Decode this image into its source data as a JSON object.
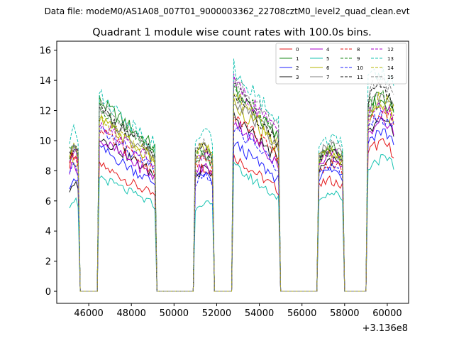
{
  "chart_data": {
    "type": "line",
    "suptitle": "Data file: modeM0/AS1A08_007T01_9000003362_22708cztM0_level2_quad_clean.evt",
    "title": "Quadrant 1 module wise count rates with 100.0s bins.",
    "xlabel": "",
    "ylabel": "",
    "x_offset_label": "+3.136e8",
    "xlim": [
      44500,
      61000
    ],
    "ylim": [
      -0.8,
      16.6
    ],
    "x_ticks": [
      46000,
      48000,
      50000,
      52000,
      54000,
      56000,
      58000,
      60000
    ],
    "x_tick_labels": [
      "46000",
      "48000",
      "50000",
      "52000",
      "54000",
      "56000",
      "58000",
      "60000"
    ],
    "y_ticks": [
      0,
      2,
      4,
      6,
      8,
      10,
      12,
      14,
      16
    ],
    "y_tick_labels": [
      "0",
      "2",
      "4",
      "6",
      "8",
      "10",
      "12",
      "14",
      "16"
    ],
    "segments": [
      {
        "start": 45100,
        "end": 45500,
        "peak_x": 45100
      },
      {
        "start": 46500,
        "end": 49100,
        "peak_x": 46500
      },
      {
        "start": 51000,
        "end": 51800,
        "peak_x": 51600
      },
      {
        "start": 52800,
        "end": 54900,
        "peak_x": 52800
      },
      {
        "start": 56800,
        "end": 57900,
        "peak_x": 56900
      },
      {
        "start": 59100,
        "end": 60300,
        "peak_x": 59200
      }
    ],
    "gap_level": 0,
    "series": [
      {
        "name": "0",
        "color": "#e41a1c",
        "dashed": false,
        "levels": [
          8.9,
          7.5,
          8.1,
          8.0,
          7.2,
          9.6
        ]
      },
      {
        "name": "1",
        "color": "#1a8a1a",
        "dashed": false,
        "levels": [
          9.4,
          11.3,
          8.8,
          12.0,
          9.1,
          12.4
        ]
      },
      {
        "name": "2",
        "color": "#1f1fff",
        "dashed": false,
        "levels": [
          7.4,
          8.5,
          7.6,
          8.8,
          7.9,
          10.4
        ]
      },
      {
        "name": "3",
        "color": "#111111",
        "dashed": false,
        "levels": [
          7.0,
          9.2,
          7.9,
          10.4,
          8.5,
          10.9
        ]
      },
      {
        "name": "4",
        "color": "#aa00cc",
        "dashed": false,
        "levels": [
          8.3,
          9.0,
          8.1,
          10.1,
          8.8,
          11.0
        ]
      },
      {
        "name": "5",
        "color": "#17c3b2",
        "dashed": false,
        "levels": [
          6.0,
          6.8,
          5.8,
          7.4,
          6.4,
          8.6
        ]
      },
      {
        "name": "6",
        "color": "#b5b500",
        "dashed": false,
        "levels": [
          8.6,
          10.2,
          9.4,
          11.2,
          9.0,
          11.8
        ]
      },
      {
        "name": "7",
        "color": "#808080",
        "dashed": false,
        "levels": [
          9.2,
          10.6,
          9.0,
          11.5,
          9.4,
          12.6
        ]
      },
      {
        "name": "8",
        "color": "#e41a1c",
        "dashed": true,
        "levels": [
          9.0,
          9.5,
          8.6,
          10.6,
          8.3,
          11.6
        ]
      },
      {
        "name": "9",
        "color": "#1a8a1a",
        "dashed": true,
        "levels": [
          9.6,
          10.9,
          9.2,
          12.3,
          9.3,
          12.9
        ]
      },
      {
        "name": "10",
        "color": "#1f1fff",
        "dashed": true,
        "levels": [
          8.0,
          9.6,
          7.5,
          9.8,
          8.2,
          11.3
        ]
      },
      {
        "name": "11",
        "color": "#111111",
        "dashed": true,
        "levels": [
          9.4,
          10.8,
          9.3,
          11.8,
          9.2,
          13.1
        ]
      },
      {
        "name": "12",
        "color": "#aa00cc",
        "dashed": true,
        "levels": [
          9.0,
          10.0,
          8.9,
          12.4,
          9.0,
          12.0
        ]
      },
      {
        "name": "13",
        "color": "#17c3b2",
        "dashed": true,
        "levels": [
          10.4,
          11.6,
          10.4,
          13.3,
          10.0,
          14.3
        ]
      },
      {
        "name": "14",
        "color": "#b5b500",
        "dashed": true,
        "levels": [
          9.3,
          10.4,
          9.4,
          11.8,
          9.2,
          12.5
        ]
      },
      {
        "name": "15",
        "color": "#808080",
        "dashed": true,
        "levels": [
          9.8,
          11.0,
          9.6,
          12.6,
          9.5,
          13.6
        ]
      }
    ]
  }
}
